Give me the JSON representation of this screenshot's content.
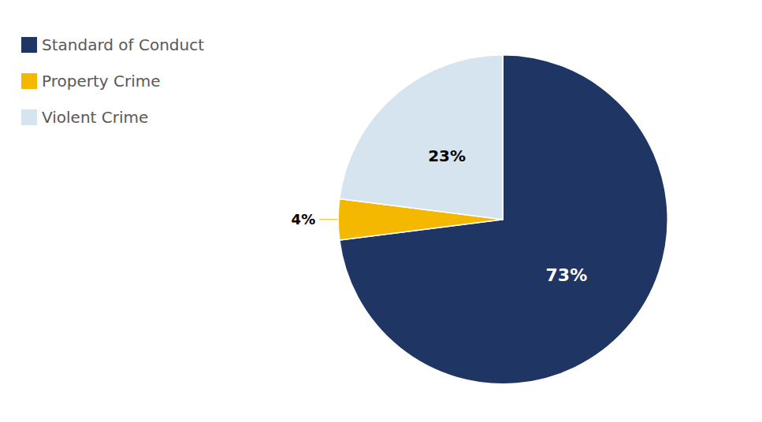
{
  "chart_data": {
    "type": "pie",
    "categories": [
      "Standard of Conduct",
      "Property Crime",
      "Violent Crime"
    ],
    "values": [
      73,
      4,
      23
    ],
    "value_labels": [
      "73%",
      "4%",
      "23%"
    ],
    "colors": [
      "#1f3564",
      "#f5b800",
      "#d6e4f0"
    ],
    "data_labels": true,
    "legend": "upper left"
  }
}
